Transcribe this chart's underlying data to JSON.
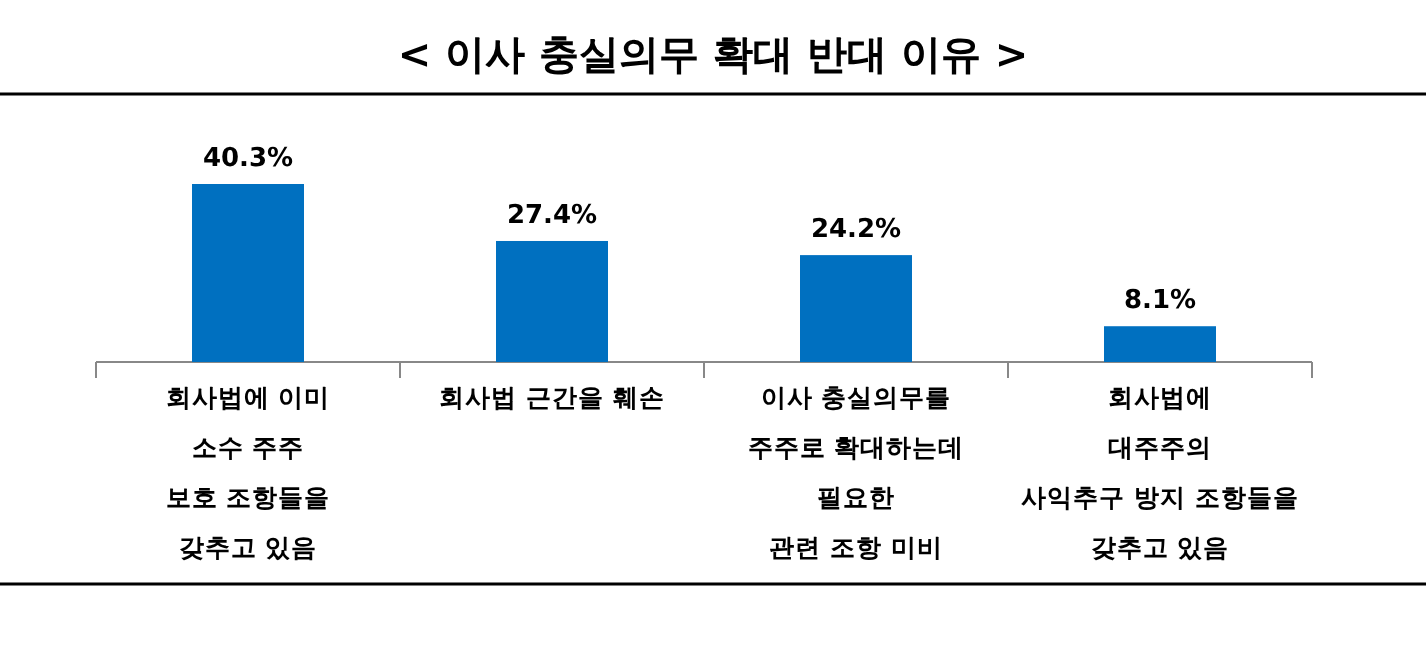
{
  "chart_data": {
    "type": "bar",
    "title": "< 이사 충실의무 확대 반대 이유 >",
    "categories": [
      "회사법에 이미\n소수 주주\n보호 조항들을\n갖추고 있음",
      "회사법 근간을 훼손",
      "이사 충실의무를\n주주로 확대하는데\n필요한\n관련 조항 미비",
      "회사법에\n대주주의\n사익추구 방지 조항들을\n갖추고 있음"
    ],
    "values": [
      40.3,
      27.4,
      24.2,
      8.1
    ],
    "value_labels": [
      "40.3%",
      "27.4%",
      "24.2%",
      "8.1%"
    ],
    "color": "#0070c0"
  }
}
